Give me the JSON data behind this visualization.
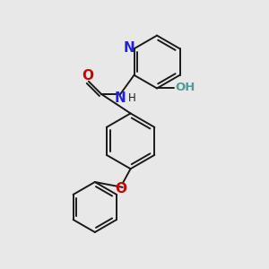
{
  "bg_color": "#e8e8e8",
  "bond_color": "#1a1a1a",
  "N_color": "#2222dd",
  "O_color": "#cc0000",
  "OH_color": "#559999",
  "line_width": 1.4,
  "font_size": 9.5,
  "xlim": [
    0,
    10
  ],
  "ylim": [
    0,
    10
  ]
}
